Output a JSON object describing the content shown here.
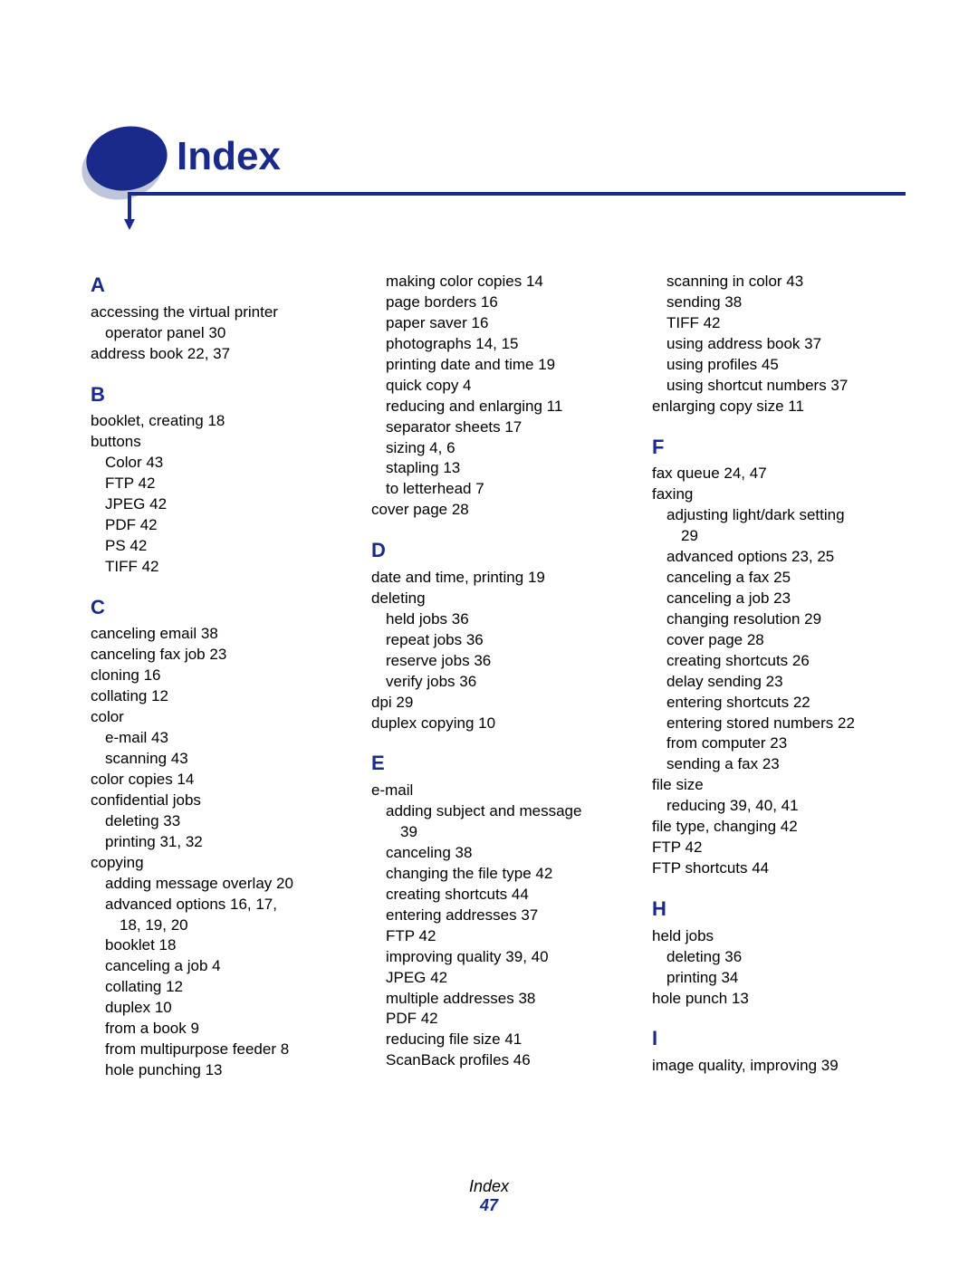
{
  "title": "Index",
  "footer_title": "Index",
  "footer_page": "47",
  "columns": [
    [
      {
        "type": "letter",
        "text": "A"
      },
      {
        "type": "entry",
        "indent": 0,
        "text": "accessing the virtual printer"
      },
      {
        "type": "entry",
        "indent": 1,
        "text": "operator panel  30"
      },
      {
        "type": "entry",
        "indent": 0,
        "text": "address book  22, 37"
      },
      {
        "type": "letter",
        "text": "B"
      },
      {
        "type": "entry",
        "indent": 0,
        "text": "booklet, creating  18"
      },
      {
        "type": "entry",
        "indent": 0,
        "text": "buttons"
      },
      {
        "type": "entry",
        "indent": 1,
        "text": "Color  43"
      },
      {
        "type": "entry",
        "indent": 1,
        "text": "FTP  42"
      },
      {
        "type": "entry",
        "indent": 1,
        "text": "JPEG  42"
      },
      {
        "type": "entry",
        "indent": 1,
        "text": "PDF  42"
      },
      {
        "type": "entry",
        "indent": 1,
        "text": "PS  42"
      },
      {
        "type": "entry",
        "indent": 1,
        "text": "TIFF  42"
      },
      {
        "type": "letter",
        "text": "C"
      },
      {
        "type": "entry",
        "indent": 0,
        "text": "canceling email  38"
      },
      {
        "type": "entry",
        "indent": 0,
        "text": "canceling fax job  23"
      },
      {
        "type": "entry",
        "indent": 0,
        "text": "cloning  16"
      },
      {
        "type": "entry",
        "indent": 0,
        "text": "collating  12"
      },
      {
        "type": "entry",
        "indent": 0,
        "text": "color"
      },
      {
        "type": "entry",
        "indent": 1,
        "text": "e-mail  43"
      },
      {
        "type": "entry",
        "indent": 1,
        "text": "scanning  43"
      },
      {
        "type": "entry",
        "indent": 0,
        "text": "color copies  14"
      },
      {
        "type": "entry",
        "indent": 0,
        "text": "confidential jobs"
      },
      {
        "type": "entry",
        "indent": 1,
        "text": "deleting  33"
      },
      {
        "type": "entry",
        "indent": 1,
        "text": "printing  31, 32"
      },
      {
        "type": "entry",
        "indent": 0,
        "text": "copying"
      },
      {
        "type": "entry",
        "indent": 1,
        "text": "adding message overlay  20"
      },
      {
        "type": "entry",
        "indent": 1,
        "text": "advanced options  16, 17,"
      },
      {
        "type": "entry",
        "indent": 2,
        "text": "18, 19, 20"
      },
      {
        "type": "entry",
        "indent": 1,
        "text": "booklet  18"
      },
      {
        "type": "entry",
        "indent": 1,
        "text": "canceling a job  4"
      },
      {
        "type": "entry",
        "indent": 1,
        "text": "collating  12"
      },
      {
        "type": "entry",
        "indent": 1,
        "text": "duplex  10"
      },
      {
        "type": "entry",
        "indent": 1,
        "text": "from a book  9"
      },
      {
        "type": "entry",
        "indent": 1,
        "text": "from multipurpose feeder  8"
      },
      {
        "type": "entry",
        "indent": 1,
        "text": "hole punching  13"
      }
    ],
    [
      {
        "type": "entry",
        "indent": 1,
        "text": "making color copies  14"
      },
      {
        "type": "entry",
        "indent": 1,
        "text": "page borders  16"
      },
      {
        "type": "entry",
        "indent": 1,
        "text": "paper saver  16"
      },
      {
        "type": "entry",
        "indent": 1,
        "text": "photographs  14, 15"
      },
      {
        "type": "entry",
        "indent": 1,
        "text": "printing date and time  19"
      },
      {
        "type": "entry",
        "indent": 1,
        "text": "quick copy  4"
      },
      {
        "type": "entry",
        "indent": 1,
        "text": "reducing and enlarging  11"
      },
      {
        "type": "entry",
        "indent": 1,
        "text": "separator sheets  17"
      },
      {
        "type": "entry",
        "indent": 1,
        "text": "sizing  4, 6"
      },
      {
        "type": "entry",
        "indent": 1,
        "text": "stapling  13"
      },
      {
        "type": "entry",
        "indent": 1,
        "text": "to letterhead  7"
      },
      {
        "type": "entry",
        "indent": 0,
        "text": "cover page  28"
      },
      {
        "type": "letter",
        "text": "D"
      },
      {
        "type": "entry",
        "indent": 0,
        "text": "date and time, printing  19"
      },
      {
        "type": "entry",
        "indent": 0,
        "text": "deleting"
      },
      {
        "type": "entry",
        "indent": 1,
        "text": "held jobs  36"
      },
      {
        "type": "entry",
        "indent": 1,
        "text": "repeat jobs  36"
      },
      {
        "type": "entry",
        "indent": 1,
        "text": "reserve jobs  36"
      },
      {
        "type": "entry",
        "indent": 1,
        "text": "verify jobs  36"
      },
      {
        "type": "entry",
        "indent": 0,
        "text": "dpi  29"
      },
      {
        "type": "entry",
        "indent": 0,
        "text": "duplex copying  10"
      },
      {
        "type": "letter",
        "text": "E"
      },
      {
        "type": "entry",
        "indent": 0,
        "text": "e-mail"
      },
      {
        "type": "entry",
        "indent": 1,
        "text": "adding subject and message"
      },
      {
        "type": "entry",
        "indent": 2,
        "text": "39"
      },
      {
        "type": "entry",
        "indent": 1,
        "text": "canceling  38"
      },
      {
        "type": "entry",
        "indent": 1,
        "text": "changing the file type  42"
      },
      {
        "type": "entry",
        "indent": 1,
        "text": "creating shortcuts  44"
      },
      {
        "type": "entry",
        "indent": 1,
        "text": "entering addresses  37"
      },
      {
        "type": "entry",
        "indent": 1,
        "text": "FTP  42"
      },
      {
        "type": "entry",
        "indent": 1,
        "text": "improving quality  39, 40"
      },
      {
        "type": "entry",
        "indent": 1,
        "text": "JPEG  42"
      },
      {
        "type": "entry",
        "indent": 1,
        "text": "multiple addresses  38"
      },
      {
        "type": "entry",
        "indent": 1,
        "text": "PDF  42"
      },
      {
        "type": "entry",
        "indent": 1,
        "text": "reducing file size  41"
      },
      {
        "type": "entry",
        "indent": 1,
        "text": "ScanBack profiles  46"
      }
    ],
    [
      {
        "type": "entry",
        "indent": 1,
        "text": "scanning in color  43"
      },
      {
        "type": "entry",
        "indent": 1,
        "text": "sending  38"
      },
      {
        "type": "entry",
        "indent": 1,
        "text": "TIFF  42"
      },
      {
        "type": "entry",
        "indent": 1,
        "text": "using address book  37"
      },
      {
        "type": "entry",
        "indent": 1,
        "text": "using profiles  45"
      },
      {
        "type": "entry",
        "indent": 1,
        "text": "using shortcut numbers  37"
      },
      {
        "type": "entry",
        "indent": 0,
        "text": "enlarging copy size  11"
      },
      {
        "type": "letter",
        "text": "F"
      },
      {
        "type": "entry",
        "indent": 0,
        "text": "fax queue  24, 47"
      },
      {
        "type": "entry",
        "indent": 0,
        "text": "faxing"
      },
      {
        "type": "entry",
        "indent": 1,
        "text": "adjusting light/dark setting"
      },
      {
        "type": "entry",
        "indent": 2,
        "text": "29"
      },
      {
        "type": "entry",
        "indent": 1,
        "text": "advanced options  23, 25"
      },
      {
        "type": "entry",
        "indent": 1,
        "text": "canceling a fax  25"
      },
      {
        "type": "entry",
        "indent": 1,
        "text": "canceling a job  23"
      },
      {
        "type": "entry",
        "indent": 1,
        "text": "changing resolution  29"
      },
      {
        "type": "entry",
        "indent": 1,
        "text": "cover page  28"
      },
      {
        "type": "entry",
        "indent": 1,
        "text": "creating shortcuts  26"
      },
      {
        "type": "entry",
        "indent": 1,
        "text": "delay sending  23"
      },
      {
        "type": "entry",
        "indent": 1,
        "text": "entering shortcuts  22"
      },
      {
        "type": "entry",
        "indent": 1,
        "text": "entering stored numbers  22"
      },
      {
        "type": "entry",
        "indent": 1,
        "text": "from computer  23"
      },
      {
        "type": "entry",
        "indent": 1,
        "text": "sending a fax  23"
      },
      {
        "type": "entry",
        "indent": 0,
        "text": "file size"
      },
      {
        "type": "entry",
        "indent": 1,
        "text": "reducing  39, 40, 41"
      },
      {
        "type": "entry",
        "indent": 0,
        "text": "file type, changing  42"
      },
      {
        "type": "entry",
        "indent": 0,
        "text": "FTP  42"
      },
      {
        "type": "entry",
        "indent": 0,
        "text": "FTP shortcuts  44"
      },
      {
        "type": "letter",
        "text": "H"
      },
      {
        "type": "entry",
        "indent": 0,
        "text": "held jobs"
      },
      {
        "type": "entry",
        "indent": 1,
        "text": "deleting  36"
      },
      {
        "type": "entry",
        "indent": 1,
        "text": "printing  34"
      },
      {
        "type": "entry",
        "indent": 0,
        "text": "hole punch  13"
      },
      {
        "type": "letter",
        "text": "I"
      },
      {
        "type": "entry",
        "indent": 0,
        "text": "image quality, improving  39"
      }
    ]
  ]
}
